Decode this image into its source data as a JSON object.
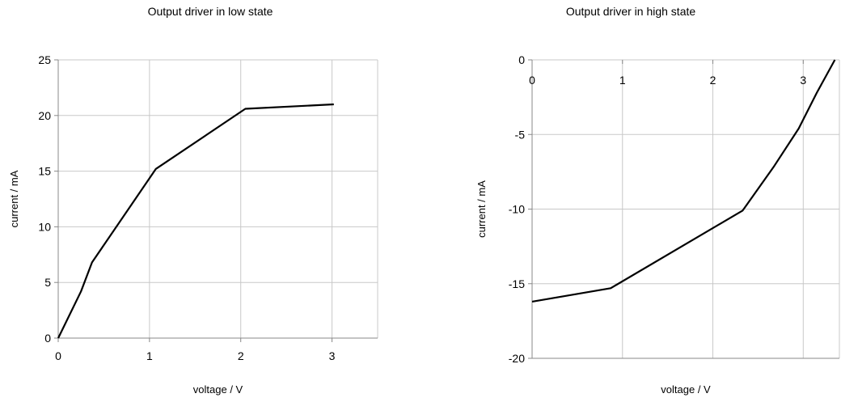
{
  "chart_data": [
    {
      "type": "line",
      "title": "Output driver in low state",
      "xlabel": "voltage / V",
      "ylabel": "current / mA",
      "xlim": [
        0,
        3.5
      ],
      "ylim": [
        0,
        25
      ],
      "xticks": [
        0,
        1,
        2,
        3
      ],
      "yticks": [
        0,
        5,
        10,
        15,
        20,
        25
      ],
      "grid": true,
      "x_tick_position": "bottom",
      "series": [
        {
          "color": "#000000",
          "x": [
            0,
            0.25,
            0.37,
            1.07,
            2.05,
            3.02
          ],
          "y": [
            0,
            4.2,
            6.8,
            15.2,
            20.6,
            21.0
          ]
        }
      ]
    },
    {
      "type": "line",
      "title": "Output driver in high state",
      "xlabel": "voltage / V",
      "ylabel": "current / mA",
      "xlim": [
        0,
        3.4
      ],
      "ylim": [
        -20,
        0
      ],
      "xticks": [
        0,
        1,
        2,
        3
      ],
      "yticks": [
        0,
        -5,
        -10,
        -15,
        -20
      ],
      "grid": true,
      "x_tick_position": "top",
      "series": [
        {
          "color": "#000000",
          "x": [
            0,
            0.87,
            2.33,
            2.67,
            2.95,
            3.15,
            3.35
          ],
          "y": [
            -16.2,
            -15.3,
            -10.1,
            -7.2,
            -4.6,
            -2.2,
            0
          ]
        }
      ]
    }
  ]
}
